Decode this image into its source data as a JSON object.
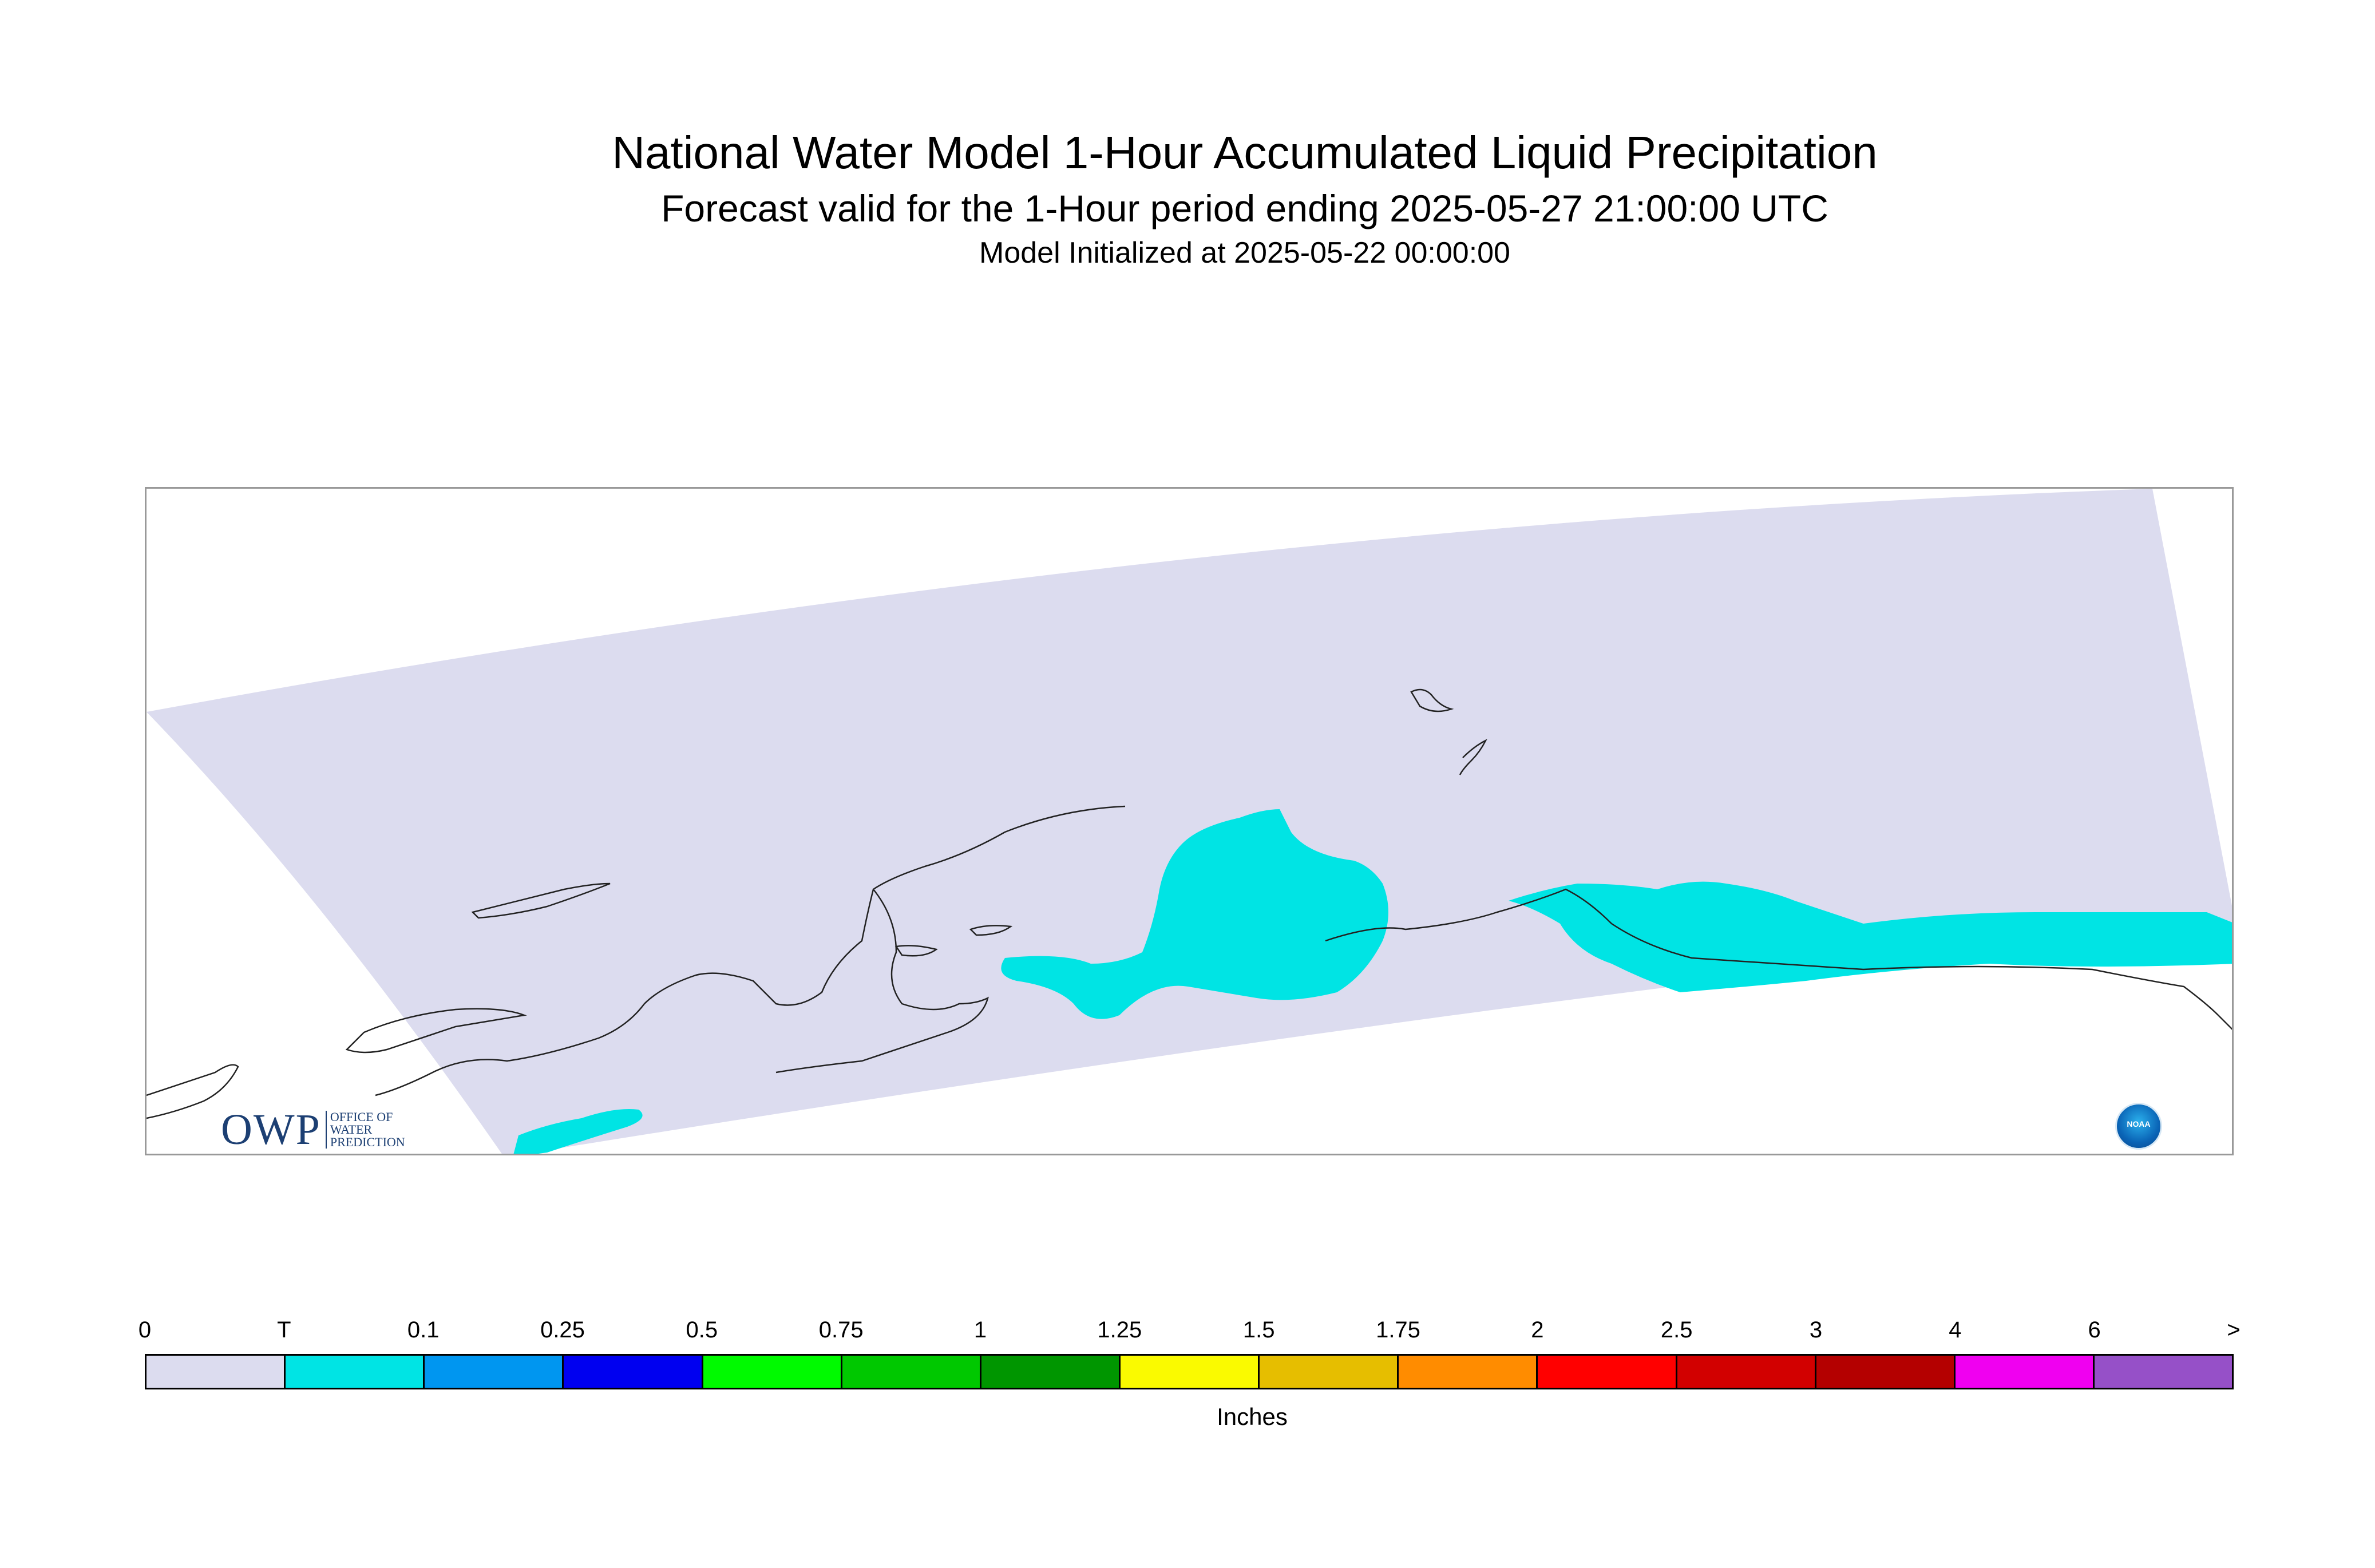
{
  "title": {
    "line1": "National Water Model 1-Hour Accumulated Liquid Precipitation",
    "line2": "Forecast valid for the 1-Hour period ending 2025-05-27 21:00:00 UTC",
    "line3": "Model Initialized at 2025-05-22 00:00:00"
  },
  "logos": {
    "owp_big": "OWP",
    "owp_small_1": "OFFICE OF",
    "owp_small_2": "WATER",
    "owp_small_3": "PREDICTION",
    "noaa": "NOAA"
  },
  "colors": {
    "domain_fill": "#dcdcef",
    "trace_fill": "#00e4e4",
    "coastline": "#222222"
  },
  "legend": {
    "units": "Inches",
    "labels": [
      "0",
      "T",
      "0.1",
      "0.25",
      "0.5",
      "0.75",
      "1",
      "1.25",
      "1.5",
      "1.75",
      "2",
      "2.5",
      "3",
      "4",
      "6",
      ">"
    ],
    "colors": [
      "#dcdcef",
      "#00e4e4",
      "#0096f0",
      "#0000f0",
      "#00fa00",
      "#00c800",
      "#009600",
      "#fafa00",
      "#e6be00",
      "#ff8c00",
      "#ff0000",
      "#d20000",
      "#b40000",
      "#f000f0",
      "#9650c8"
    ]
  }
}
